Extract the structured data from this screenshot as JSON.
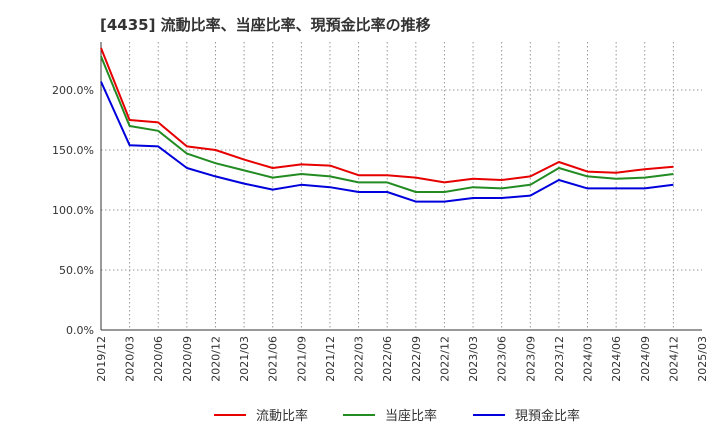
{
  "chart_data": {
    "type": "line",
    "title": "[4435]  流動比率、当座比率、現預金比率の推移",
    "xlabel": "",
    "ylabel": "",
    "ylim": [
      0,
      240
    ],
    "grid": true,
    "legend_position": "bottom",
    "y_ticks": [
      0,
      50,
      100,
      150,
      200
    ],
    "y_tick_labels": [
      "0.0%",
      "50.0%",
      "100.0%",
      "150.0%",
      "200.0%"
    ],
    "x_tick_labels": [
      "2019/12",
      "2020/03",
      "2020/06",
      "2020/09",
      "2020/12",
      "2021/03",
      "2021/06",
      "2021/09",
      "2021/12",
      "2022/03",
      "2022/06",
      "2022/09",
      "2022/12",
      "2023/03",
      "2023/06",
      "2023/09",
      "2023/12",
      "2024/03",
      "2024/06",
      "2024/09",
      "2024/12",
      "2025/03"
    ],
    "categories": [
      "2019/12",
      "2020/03",
      "2020/06",
      "2020/09",
      "2020/12",
      "2021/03",
      "2021/06",
      "2021/09",
      "2021/12",
      "2022/03",
      "2022/06",
      "2022/09",
      "2022/12",
      "2023/03",
      "2023/06",
      "2023/09",
      "2023/12",
      "2024/03",
      "2024/06",
      "2024/09",
      "2024/12"
    ],
    "series": [
      {
        "name": "流動比率",
        "color": "#e60000",
        "values": [
          235,
          175,
          173,
          153,
          150,
          142,
          135,
          138,
          137,
          129,
          129,
          127,
          123,
          126,
          125,
          128,
          140,
          132,
          131,
          134,
          136
        ]
      },
      {
        "name": "当座比率",
        "color": "#228b22",
        "values": [
          228,
          170,
          166,
          147,
          139,
          133,
          127,
          130,
          128,
          123,
          123,
          115,
          115,
          119,
          118,
          121,
          135,
          128,
          126,
          127,
          130
        ]
      },
      {
        "name": "現預金比率",
        "color": "#0000dd",
        "values": [
          207,
          154,
          153,
          135,
          128,
          122,
          117,
          121,
          119,
          115,
          115,
          107,
          107,
          110,
          110,
          112,
          125,
          118,
          118,
          118,
          121
        ]
      }
    ]
  }
}
